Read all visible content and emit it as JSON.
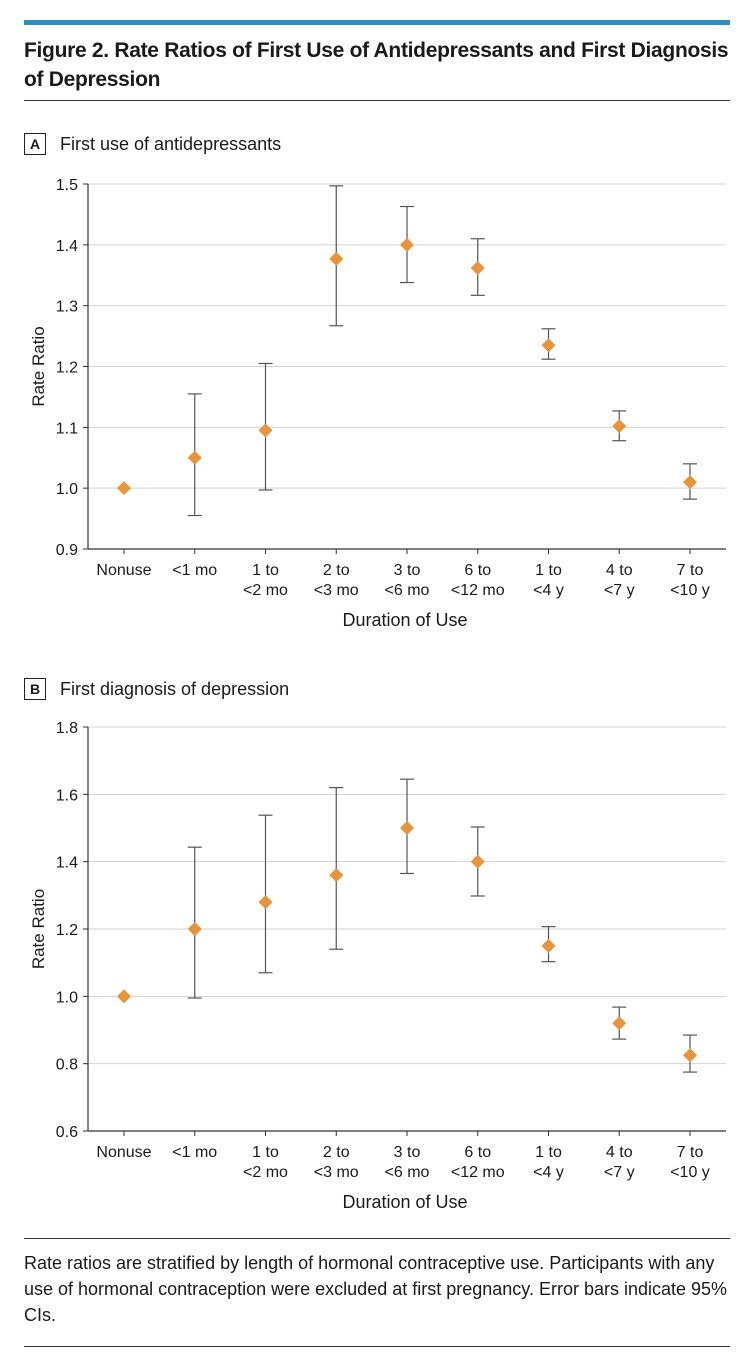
{
  "figure": {
    "title": "Figure 2. Rate Ratios of First Use of Antidepressants and First Diagnosis of Depression",
    "caption": "Rate ratios are stratified by length of hormonal contraceptive use. Participants with any use of hormonal contraception were excluded at first pregnancy. Error bars indicate 95% CIs.",
    "colors": {
      "accent_bar": "#2a8fc4",
      "marker": "#e8943a",
      "grid": "#d3d3d3"
    }
  },
  "chart_data": [
    {
      "panel": "A",
      "type": "scatter",
      "title": "First use of antidepressants",
      "xlabel": "Duration of Use",
      "ylabel": "Rate Ratio",
      "categories": [
        [
          "Nonuse"
        ],
        [
          "<1 mo"
        ],
        [
          "1 to",
          "<2 mo"
        ],
        [
          "2 to",
          "<3 mo"
        ],
        [
          "3 to",
          "<6 mo"
        ],
        [
          "6 to",
          "<12 mo"
        ],
        [
          "1 to",
          "<4 y"
        ],
        [
          "4 to",
          "<7 y"
        ],
        [
          "7 to",
          "<10 y"
        ]
      ],
      "values": [
        1.0,
        1.05,
        1.095,
        1.377,
        1.4,
        1.362,
        1.235,
        1.102,
        1.01
      ],
      "ci_lower": [
        null,
        0.955,
        0.997,
        1.267,
        1.338,
        1.317,
        1.212,
        1.078,
        0.982
      ],
      "ci_upper": [
        null,
        1.155,
        1.205,
        1.497,
        1.463,
        1.41,
        1.262,
        1.127,
        1.04
      ],
      "ylim": [
        0.9,
        1.5
      ],
      "yticks": [
        0.9,
        1.0,
        1.1,
        1.2,
        1.3,
        1.4,
        1.5
      ],
      "ytick_labels": [
        "0.9",
        "1.0",
        "1.1",
        "1.2",
        "1.3",
        "1.4",
        "1.5"
      ],
      "grid": "horizontal"
    },
    {
      "panel": "B",
      "type": "scatter",
      "title": "First diagnosis of depression",
      "xlabel": "Duration of Use",
      "ylabel": "Rate Ratio",
      "categories": [
        [
          "Nonuse"
        ],
        [
          "<1 mo"
        ],
        [
          "1 to",
          "<2 mo"
        ],
        [
          "2 to",
          "<3 mo"
        ],
        [
          "3 to",
          "<6 mo"
        ],
        [
          "6 to",
          "<12 mo"
        ],
        [
          "1 to",
          "<4 y"
        ],
        [
          "4 to",
          "<7 y"
        ],
        [
          "7 to",
          "<10 y"
        ]
      ],
      "values": [
        1.0,
        1.2,
        1.28,
        1.36,
        1.5,
        1.4,
        1.15,
        0.92,
        0.825
      ],
      "ci_lower": [
        null,
        0.995,
        1.07,
        1.14,
        1.365,
        1.298,
        1.103,
        0.873,
        0.775
      ],
      "ci_upper": [
        null,
        1.443,
        1.538,
        1.62,
        1.645,
        1.503,
        1.207,
        0.968,
        0.885
      ],
      "ylim": [
        0.6,
        1.8
      ],
      "yticks": [
        0.6,
        0.8,
        1.0,
        1.2,
        1.4,
        1.6,
        1.8
      ],
      "ytick_labels": [
        "0.6",
        "0.8",
        "1.0",
        "1.2",
        "1.4",
        "1.6",
        "1.8"
      ],
      "grid": "horizontal"
    }
  ]
}
